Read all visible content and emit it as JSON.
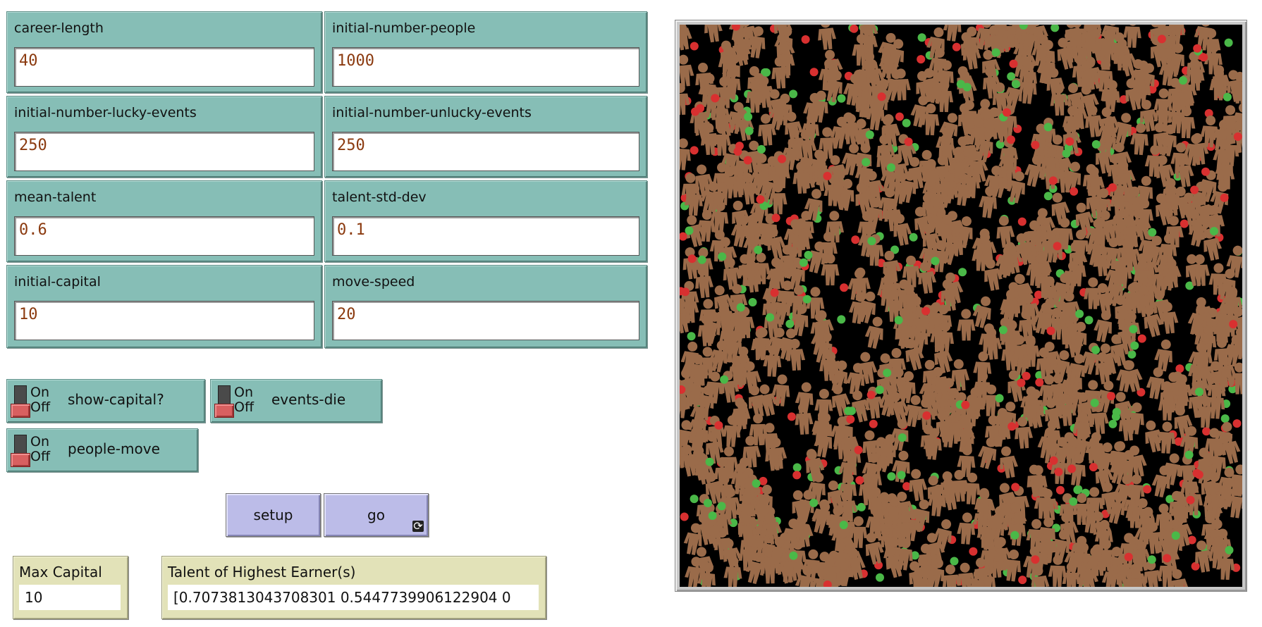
{
  "inputs": [
    {
      "name": "career-length",
      "value": "40"
    },
    {
      "name": "initial-number-people",
      "value": "1000"
    },
    {
      "name": "initial-number-lucky-events",
      "value": "250"
    },
    {
      "name": "initial-number-unlucky-events",
      "value": "250"
    },
    {
      "name": "mean-talent",
      "value": "0.6"
    },
    {
      "name": "talent-std-dev",
      "value": "0.1"
    },
    {
      "name": "initial-capital",
      "value": "10"
    },
    {
      "name": "move-speed",
      "value": "20"
    }
  ],
  "switches": {
    "on_label": "On",
    "off_label": "Off",
    "items": [
      {
        "name": "show-capital?"
      },
      {
        "name": "events-die"
      },
      {
        "name": "people-move"
      }
    ]
  },
  "buttons": {
    "setup": "setup",
    "go": "go",
    "forever_icon": "forever-loop-icon"
  },
  "monitors": {
    "max_capital": {
      "label": "Max Capital",
      "value": "10"
    },
    "talent_highest": {
      "label": "Talent of Highest Earner(s)",
      "value": "[0.7073813043708301 0.5447739906122904 0"
    }
  },
  "world": {
    "background": "#000000",
    "person_color": "#9a6b4a",
    "lucky_color": "#4ab848",
    "unlucky_color": "#d83030",
    "person_icon": "person-shape-icon"
  }
}
